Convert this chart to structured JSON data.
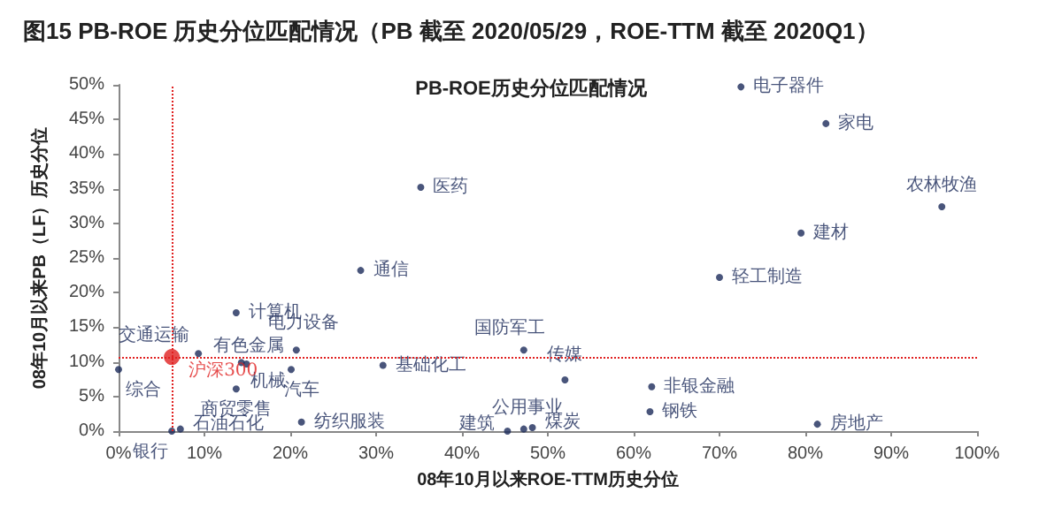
{
  "chart_data": {
    "type": "scatter",
    "title": "图15 PB-ROE 历史分位匹配情况（PB 截至 2020/05/29，ROE-TTM 截至 2020Q1）",
    "subtitle": "PB-ROE历史分位匹配情况",
    "xlabel": "08年10月以来ROE-TTM历史分位",
    "ylabel": "08年10月以来PB（LF）历史分位",
    "marker": "circle",
    "legend": false,
    "grid": false,
    "xlim": [
      0,
      100
    ],
    "xticks": [
      {
        "value": 0,
        "label": "0%"
      },
      {
        "value": 10,
        "label": "10%"
      },
      {
        "value": 20,
        "label": "20%"
      },
      {
        "value": 30,
        "label": "30%"
      },
      {
        "value": 40,
        "label": "40%"
      },
      {
        "value": 50,
        "label": "50%"
      },
      {
        "value": 60,
        "label": "60%"
      },
      {
        "value": 70,
        "label": "70%"
      },
      {
        "value": 80,
        "label": "80%"
      },
      {
        "value": 90,
        "label": "90%"
      },
      {
        "value": 100,
        "label": "100%"
      }
    ],
    "ylim": [
      0,
      50
    ],
    "yticks": [
      {
        "value": 0,
        "label": "0%"
      },
      {
        "value": 5,
        "label": "5%"
      },
      {
        "value": 10,
        "label": "10%"
      },
      {
        "value": 15,
        "label": "15%"
      },
      {
        "value": 20,
        "label": "20%"
      },
      {
        "value": 25,
        "label": "25%"
      },
      {
        "value": 30,
        "label": "30%"
      },
      {
        "value": 35,
        "label": "35%"
      },
      {
        "value": 40,
        "label": "40%"
      },
      {
        "value": 45,
        "label": "45%"
      },
      {
        "value": 50,
        "label": "50%"
      }
    ],
    "ref_lines": [
      {
        "axis": "x",
        "value": 6.2,
        "color": "#e02020",
        "line_style": "dotted"
      },
      {
        "axis": "y",
        "value": 10.7,
        "color": "#e02020",
        "line_style": "dotted"
      }
    ],
    "series": [
      {
        "name": "电子器件",
        "color": "#1c2a5a",
        "x": [
          72.5
        ],
        "values": [
          49.7
        ]
      },
      {
        "name": "家电",
        "color": "#1c2a5a",
        "x": [
          82.4
        ],
        "values": [
          44.4
        ]
      },
      {
        "name": "农林牧渔",
        "color": "#1c2a5a",
        "x": [
          95.9
        ],
        "values": [
          32.4
        ]
      },
      {
        "name": "建材",
        "color": "#1c2a5a",
        "x": [
          79.5
        ],
        "values": [
          28.6
        ]
      },
      {
        "name": "轻工制造",
        "color": "#1c2a5a",
        "x": [
          70.0
        ],
        "values": [
          22.2
        ]
      },
      {
        "name": "医药",
        "color": "#1c2a5a",
        "x": [
          35.2
        ],
        "values": [
          35.2
        ]
      },
      {
        "name": "通信",
        "color": "#1c2a5a",
        "x": [
          28.2
        ],
        "values": [
          23.2
        ]
      },
      {
        "name": "计算机",
        "color": "#1c2a5a",
        "x": [
          13.7
        ],
        "values": [
          17.1
        ]
      },
      {
        "name": "交通运输",
        "color": "#1c2a5a",
        "x": [
          9.3
        ],
        "values": [
          11.2
        ]
      },
      {
        "name": "有色金属",
        "color": "#1c2a5a",
        "x": [
          14.3
        ],
        "values": [
          9.9
        ]
      },
      {
        "name": "机械",
        "color": "#1c2a5a",
        "x": [
          14.9
        ],
        "values": [
          9.7
        ]
      },
      {
        "name": "商贸零售",
        "color": "#1c2a5a",
        "x": [
          13.7
        ],
        "values": [
          6.1
        ]
      },
      {
        "name": "电力设备",
        "color": "#1c2a5a",
        "x": [
          20.7
        ],
        "values": [
          11.7
        ]
      },
      {
        "name": "汽车",
        "color": "#1c2a5a",
        "x": [
          20.1
        ],
        "values": [
          8.9
        ]
      },
      {
        "name": "综合",
        "color": "#1c2a5a",
        "x": [
          0
        ],
        "values": [
          8.9
        ]
      },
      {
        "name": "沪深300",
        "color": "#e02020",
        "x": [
          6.2
        ],
        "values": [
          10.7
        ]
      },
      {
        "name": "银行",
        "color": "#1c2a5a",
        "x": [
          6.2
        ],
        "values": [
          0
        ]
      },
      {
        "name": "石油石化",
        "color": "#1c2a5a",
        "x": [
          7.2
        ],
        "values": [
          0.3
        ]
      },
      {
        "name": "纺织服装",
        "color": "#1c2a5a",
        "x": [
          21.3
        ],
        "values": [
          1.3
        ]
      },
      {
        "name": "基础化工",
        "color": "#1c2a5a",
        "x": [
          30.8
        ],
        "values": [
          9.5
        ]
      },
      {
        "name": "国防军工",
        "color": "#1c2a5a",
        "x": [
          47.2
        ],
        "values": [
          11.7
        ]
      },
      {
        "name": "传媒",
        "color": "#1c2a5a",
        "x": [
          52.0
        ],
        "values": [
          7.4
        ]
      },
      {
        "name": "建筑",
        "color": "#1c2a5a",
        "x": [
          45.3
        ],
        "values": [
          0
        ]
      },
      {
        "name": "公用事业",
        "color": "#1c2a5a",
        "x": [
          47.2
        ],
        "values": [
          0.3
        ]
      },
      {
        "name": "煤炭",
        "color": "#1c2a5a",
        "x": [
          48.2
        ],
        "values": [
          0.5
        ]
      },
      {
        "name": "非银金融",
        "color": "#1c2a5a",
        "x": [
          62.1
        ],
        "values": [
          6.4
        ]
      },
      {
        "name": "钢铁",
        "color": "#1c2a5a",
        "x": [
          61.9
        ],
        "values": [
          2.8
        ]
      },
      {
        "name": "房地产",
        "color": "#1c2a5a",
        "x": [
          81.4
        ],
        "values": [
          1.0
        ]
      }
    ]
  }
}
